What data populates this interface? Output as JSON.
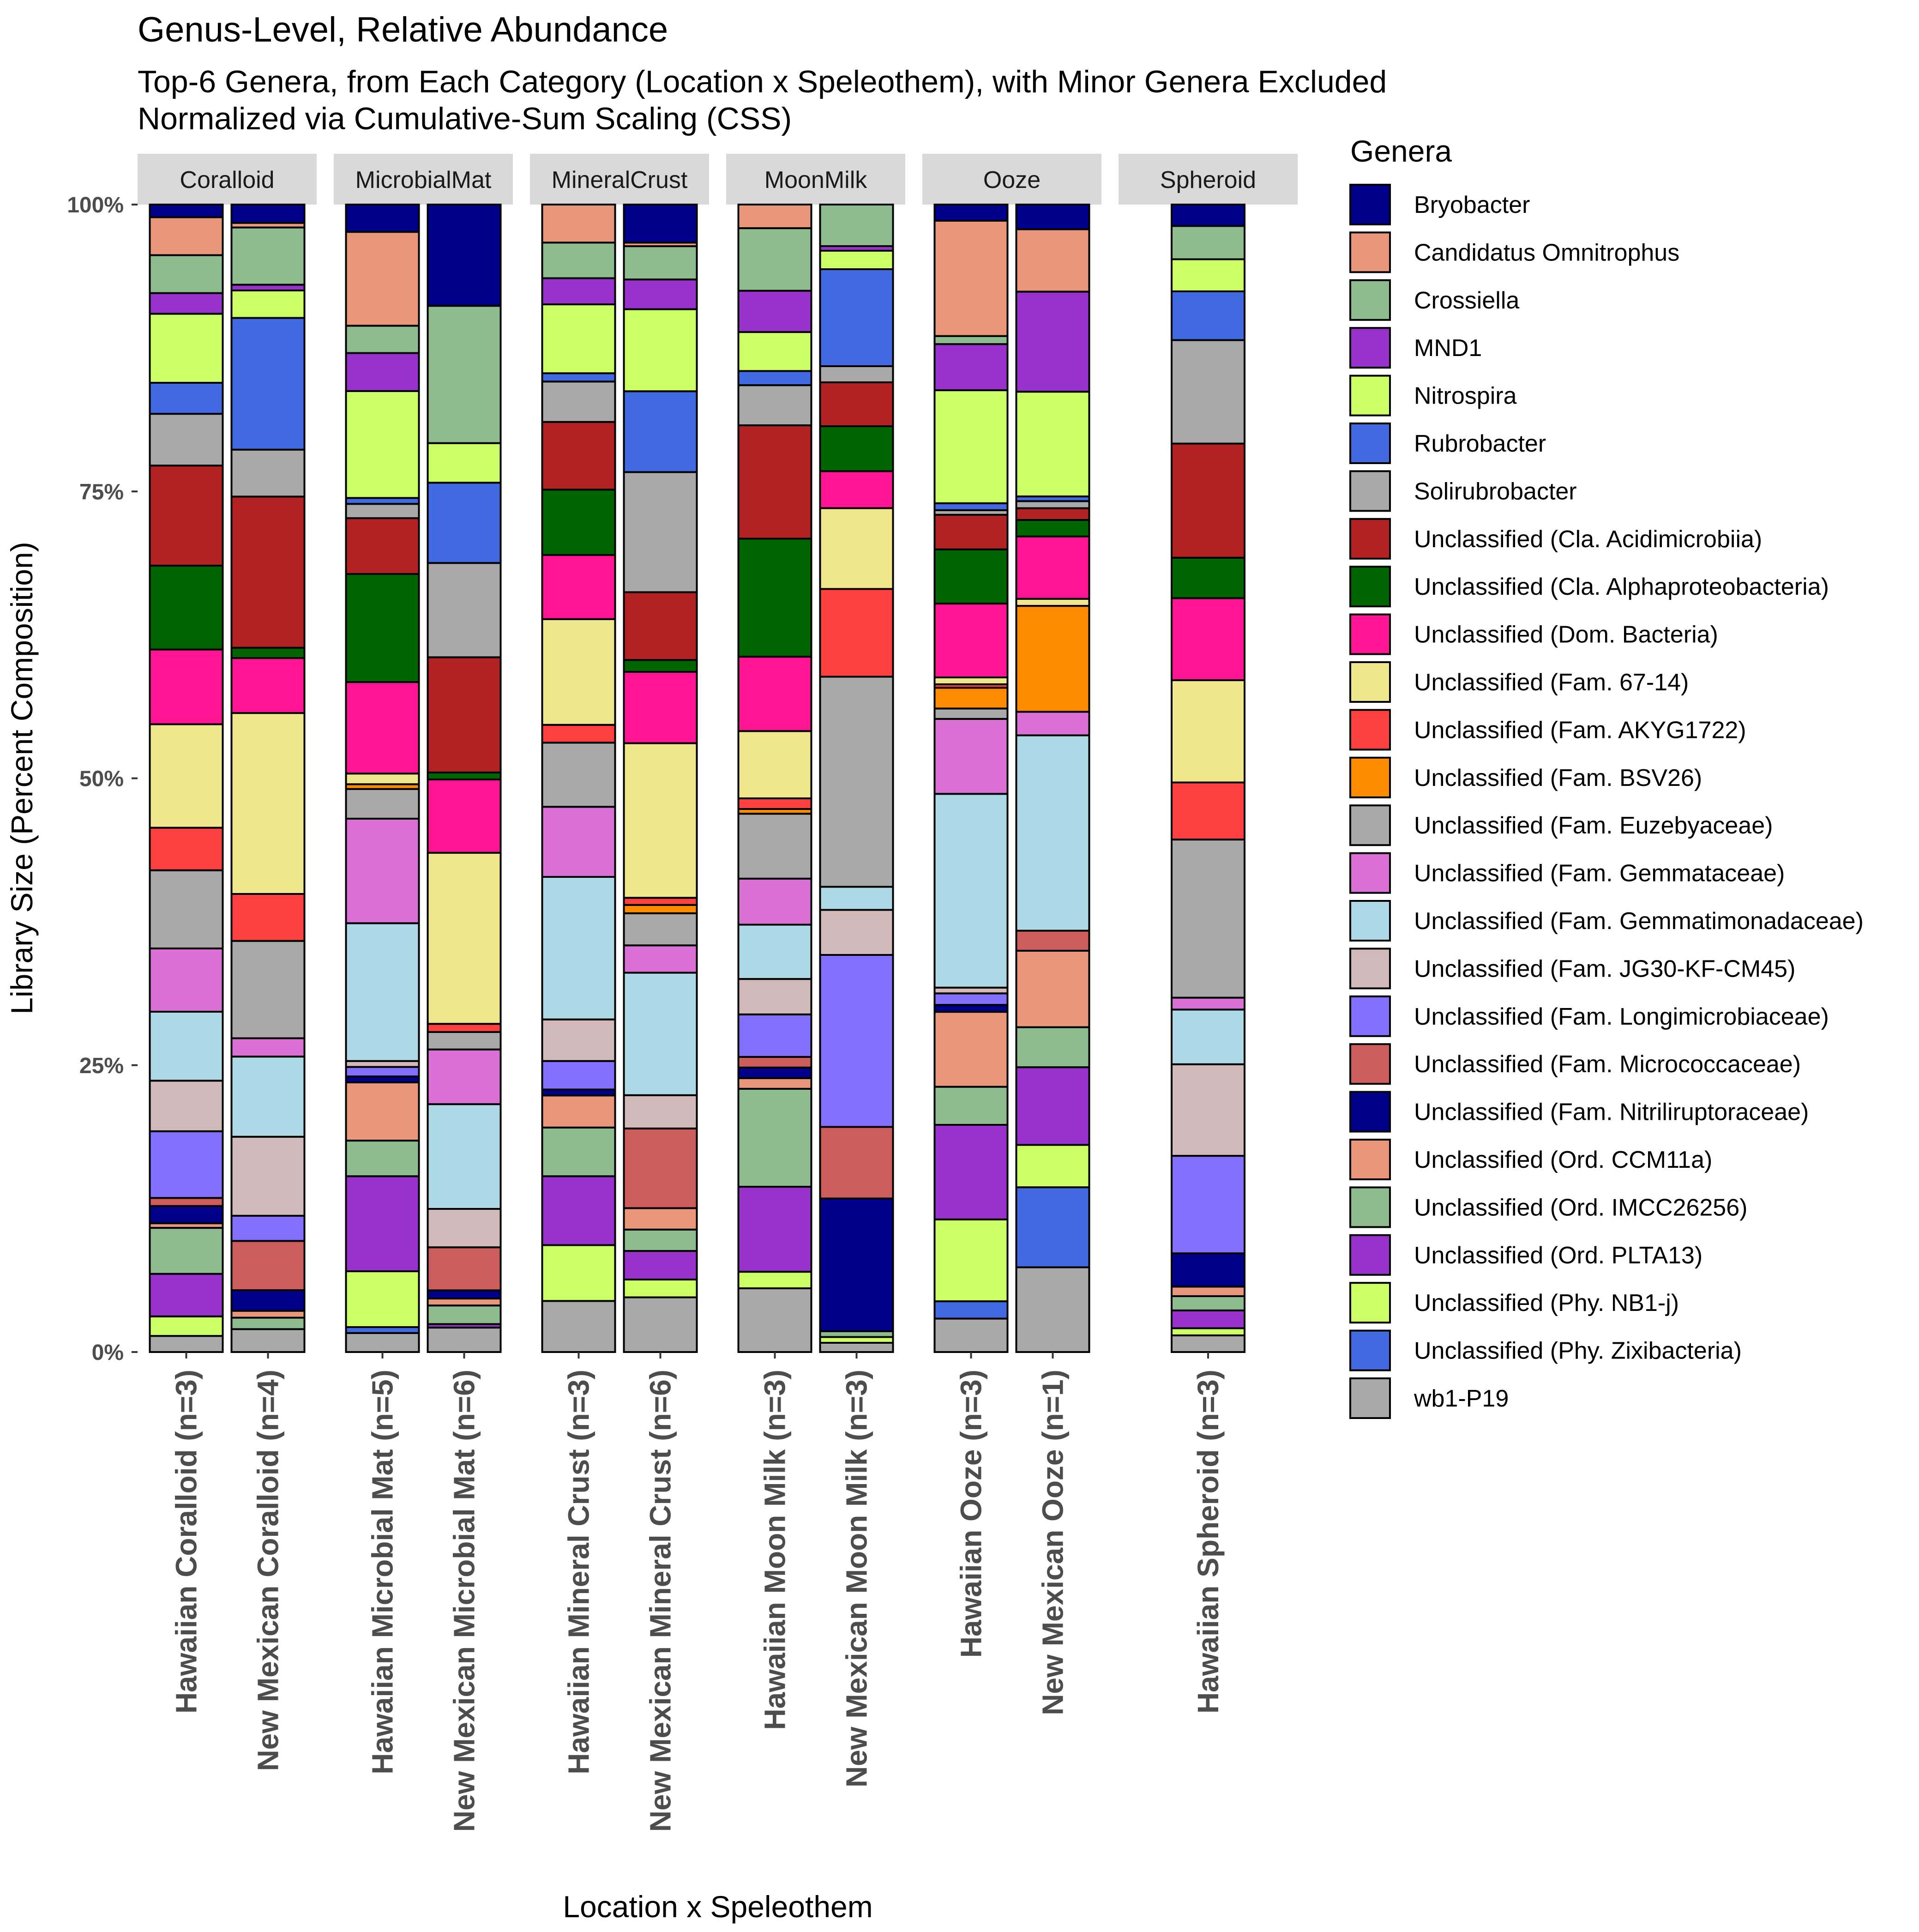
{
  "chart_data": {
    "type": "bar",
    "stacked": true,
    "title": "Genus-Level, Relative Abundance",
    "subtitle_lines": [
      "Top-6 Genera, from Each Category (Location x Speleothem), with Minor Genera Excluded",
      "Normalized via Cumulative-Sum Scaling (CSS)"
    ],
    "xlabel": "Location x Speleothem",
    "ylabel": "Library Size (Percent Composition)",
    "ylim": [
      0,
      100
    ],
    "yticks": [
      {
        "value": 0,
        "label": "0%"
      },
      {
        "value": 25,
        "label": "25%"
      },
      {
        "value": 50,
        "label": "50%"
      },
      {
        "value": 75,
        "label": "75%"
      },
      {
        "value": 100,
        "label": "100%"
      }
    ],
    "legend_title": "Genera",
    "legend_position": "right",
    "genera": [
      {
        "name": "Bryobacter",
        "color": "#00008B"
      },
      {
        "name": "Candidatus Omnitrophus",
        "color": "#E9967A"
      },
      {
        "name": "Crossiella",
        "color": "#8FBC8F"
      },
      {
        "name": "MND1",
        "color": "#9932CC"
      },
      {
        "name": "Nitrospira",
        "color": "#CCFF66"
      },
      {
        "name": "Rubrobacter",
        "color": "#4169E1"
      },
      {
        "name": "Solirubrobacter",
        "color": "#A9A9A9"
      },
      {
        "name": "Unclassified (Cla. Acidimicrobiia)",
        "color": "#B22222"
      },
      {
        "name": "Unclassified (Cla. Alphaproteobacteria)",
        "color": "#006400"
      },
      {
        "name": "Unclassified (Dom. Bacteria)",
        "color": "#FF1493"
      },
      {
        "name": "Unclassified (Fam. 67-14)",
        "color": "#F0E68C"
      },
      {
        "name": "Unclassified (Fam. AKYG1722)",
        "color": "#FF4040"
      },
      {
        "name": "Unclassified (Fam. BSV26)",
        "color": "#FF8C00"
      },
      {
        "name": "Unclassified (Fam. Euzebyaceae)",
        "color": "#A9A9A9"
      },
      {
        "name": "Unclassified (Fam. Gemmataceae)",
        "color": "#DA70D6"
      },
      {
        "name": "Unclassified (Fam. Gemmatimonadaceae)",
        "color": "#ADD8E6"
      },
      {
        "name": "Unclassified (Fam. JG30-KF-CM45)",
        "color": "#D2B9B9"
      },
      {
        "name": "Unclassified (Fam. Longimicrobiaceae)",
        "color": "#8470FF"
      },
      {
        "name": "Unclassified (Fam. Micrococcaceae)",
        "color": "#CD5C5C"
      },
      {
        "name": "Unclassified (Fam. Nitriliruptoraceae)",
        "color": "#00008B"
      },
      {
        "name": "Unclassified (Ord. CCM11a)",
        "color": "#E9967A"
      },
      {
        "name": "Unclassified (Ord. IMCC26256)",
        "color": "#8FBC8F"
      },
      {
        "name": "Unclassified (Ord. PLTA13)",
        "color": "#9932CC"
      },
      {
        "name": "Unclassified (Phy. NB1-j)",
        "color": "#CCFF66"
      },
      {
        "name": "Unclassified (Phy. Zixibacteria)",
        "color": "#4169E1"
      },
      {
        "name": "wb1-P19",
        "color": "#A9A9A9"
      }
    ],
    "facets": [
      {
        "label": "Coralloid",
        "bars": [
          {
            "label": "Hawaiian Coralloid (n=3)",
            "values": [
              1.1,
              3.3,
              3.3,
              1.8,
              6.0,
              2.7,
              4.5,
              8.7,
              7.3,
              6.5,
              9.0,
              3.7,
              0,
              6.8,
              5.5,
              6.0,
              4.4,
              5.8,
              0.7,
              1.5,
              0.4,
              4.0,
              3.7,
              1.7,
              0,
              1.4
            ]
          },
          {
            "label": "New Mexican Coralloid (n=4)",
            "values": [
              1.6,
              0.4,
              5.0,
              0.5,
              2.4,
              11.5,
              4.1,
              13.2,
              0.9,
              4.8,
              15.8,
              4.1,
              0,
              8.5,
              1.6,
              7.0,
              6.9,
              2.2,
              4.3,
              1.8,
              0.6,
              1.0,
              0,
              0,
              0,
              2.0
            ]
          }
        ]
      },
      {
        "label": "MicrobialMat",
        "bars": [
          {
            "label": "Hawaiian Microbial Mat (n=5)",
            "values": [
              2.3,
              7.9,
              2.3,
              3.2,
              9.0,
              0.5,
              1.2,
              4.7,
              9.1,
              7.7,
              0.9,
              0,
              0.4,
              2.5,
              8.8,
              11.6,
              0.5,
              0.8,
              0,
              0.5,
              4.9,
              3.0,
              8.0,
              4.7,
              0.5,
              1.6
            ]
          },
          {
            "label": "New Mexican Microbial Mat (n=6)",
            "values": [
              8.7,
              0,
              11.8,
              0,
              3.4,
              6.9,
              8.1,
              9.9,
              0.6,
              6.3,
              14.7,
              0.7,
              0,
              1.5,
              4.7,
              9.0,
              3.3,
              0,
              3.7,
              0.7,
              0.6,
              1.6,
              0.3,
              0,
              0,
              2.1
            ]
          }
        ]
      },
      {
        "label": "MineralCrust",
        "bars": [
          {
            "label": "Hawaiian Mineral Crust (n=3)",
            "values": [
              0,
              3.2,
              3.0,
              2.2,
              5.8,
              0.7,
              3.4,
              5.7,
              5.5,
              5.4,
              8.9,
              1.5,
              0,
              5.4,
              5.9,
              12.0,
              3.5,
              2.4,
              0,
              0.5,
              2.7,
              4.1,
              5.8,
              4.7,
              0,
              4.3
            ]
          },
          {
            "label": "New Mexican Mineral Crust (n=6)",
            "values": [
              3.2,
              0.3,
              2.8,
              2.5,
              6.9,
              6.8,
              10.1,
              5.7,
              1.0,
              6.0,
              13.0,
              0.6,
              0.7,
              2.7,
              2.3,
              10.3,
              2.8,
              0,
              6.7,
              0,
              1.8,
              1.8,
              2.4,
              1.5,
              0,
              4.6
            ]
          }
        ]
      },
      {
        "label": "MoonMilk",
        "bars": [
          {
            "label": "Hawaiian Moon Milk (n=3)",
            "values": [
              0,
              2.0,
              5.3,
              3.5,
              3.3,
              1.2,
              3.4,
              9.6,
              10.0,
              6.3,
              5.7,
              0.9,
              0.4,
              5.5,
              3.9,
              4.6,
              3.0,
              3.6,
              0.9,
              0.9,
              0.9,
              8.3,
              7.2,
              1.4,
              0,
              5.4
            ]
          },
          {
            "label": "New Mexican Moon Milk (n=3)",
            "values": [
              0,
              0,
              3.6,
              0.4,
              1.6,
              8.4,
              1.4,
              3.8,
              3.9,
              3.2,
              7.0,
              7.6,
              0,
              18.2,
              0,
              2.0,
              3.9,
              14.9,
              6.2,
              11.5,
              0,
              0.5,
              0,
              0.5,
              0,
              0.8
            ]
          }
        ]
      },
      {
        "label": "Ooze",
        "bars": [
          {
            "label": "Hawaiian Ooze (n=3)",
            "values": [
              1.4,
              10.0,
              0.7,
              4.0,
              9.8,
              0.6,
              0.4,
              3.0,
              4.7,
              6.4,
              0.6,
              0.3,
              1.8,
              0.9,
              6.5,
              16.8,
              0.5,
              1.0,
              0,
              0.6,
              6.5,
              3.3,
              8.2,
              7.1,
              1.5,
              2.9
            ]
          },
          {
            "label": "New Mexican Ooze (n=1)",
            "values": [
              2.1,
              5.3,
              0,
              8.5,
              8.9,
              0.4,
              0.6,
              1.0,
              1.4,
              5.3,
              0.6,
              0,
              9.0,
              0,
              2.0,
              16.6,
              0,
              0,
              1.7,
              0,
              6.5,
              3.4,
              6.6,
              3.6,
              6.8,
              7.2
            ]
          }
        ]
      },
      {
        "label": "Spheroid",
        "bars": [
          {
            "label": "Hawaiian Spheroid (n=3)",
            "values": [
              1.8,
              0,
              2.8,
              0,
              2.7,
              4.1,
              8.7,
              9.6,
              3.4,
              6.9,
              8.6,
              4.8,
              0,
              13.3,
              1.0,
              4.6,
              7.7,
              8.2,
              0,
              2.8,
              0.8,
              1.2,
              1.5,
              0.6,
              0,
              1.4
            ]
          }
        ]
      }
    ]
  }
}
